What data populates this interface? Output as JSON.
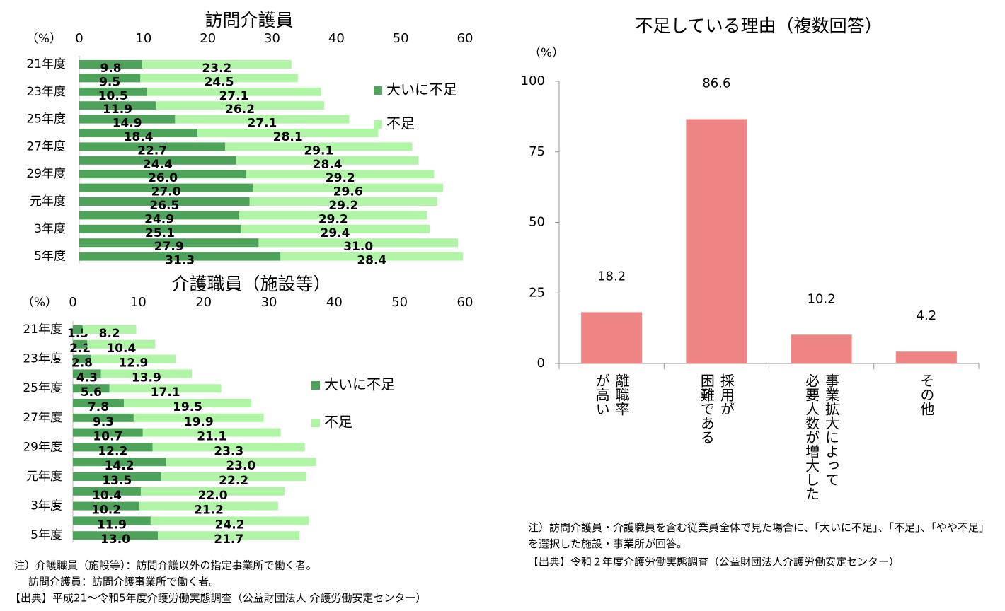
{
  "chart_data": [
    {
      "type": "bar",
      "orientation": "horizontal",
      "stacked": true,
      "title": "訪問介護員",
      "xlabel": "（%）",
      "categories": [
        "21年度",
        null,
        "23年度",
        null,
        "25年度",
        null,
        "27年度",
        null,
        "29年度",
        null,
        "元年度",
        null,
        "3年度",
        null,
        "5年度"
      ],
      "series": [
        {
          "name": "大いに不足",
          "color": "#4ea35a",
          "values": [
            9.8,
            9.5,
            10.5,
            11.9,
            14.9,
            18.4,
            22.7,
            24.4,
            26.0,
            27.0,
            26.5,
            24.9,
            25.1,
            27.9,
            31.3
          ],
          "value_labels": [
            "9.8",
            "9.5",
            "10.5",
            "11.9",
            "14.9",
            "18.4",
            "22.7",
            "24.4",
            "26.0",
            "27.0",
            "26.5",
            "24.9",
            "25.1",
            "27.9",
            "31.3"
          ]
        },
        {
          "name": "不足",
          "color": "#b0f5a6",
          "values": [
            23.2,
            24.5,
            27.1,
            26.2,
            27.1,
            28.1,
            29.1,
            28.4,
            29.2,
            29.6,
            29.2,
            29.2,
            29.4,
            31.0,
            28.4
          ],
          "value_labels": [
            "23.2",
            "24.5",
            "27.1",
            "26.2",
            "27.1",
            "28.1",
            "29.1",
            "28.4",
            "29.2",
            "29.6",
            "29.2",
            "29.2",
            "29.4",
            "31.0",
            "28.4"
          ]
        }
      ],
      "xlim": [
        0,
        60
      ],
      "xticks": [
        0,
        10,
        20,
        30,
        40,
        50,
        60
      ],
      "grid": false
    },
    {
      "type": "bar",
      "orientation": "horizontal",
      "stacked": true,
      "title": "介護職員（施設等）",
      "xlabel": "（%）",
      "categories": [
        "21年度",
        null,
        "23年度",
        null,
        "25年度",
        null,
        "27年度",
        null,
        "29年度",
        null,
        "元年度",
        null,
        "3年度",
        null,
        "5年度"
      ],
      "series": [
        {
          "name": "大いに不足",
          "color": "#4ea35a",
          "values": [
            1.5,
            2.2,
            2.8,
            4.3,
            5.6,
            7.8,
            9.3,
            10.7,
            12.2,
            14.2,
            13.5,
            10.4,
            10.2,
            11.9,
            13.0
          ],
          "value_labels": [
            "1.5",
            "2.2",
            "2.8",
            "4.3",
            "5.6",
            "7.8",
            "9.3",
            "10.7",
            "12.2",
            "14.2",
            "13.5",
            "10.4",
            "10.2",
            "11.9",
            "13.0"
          ]
        },
        {
          "name": "不足",
          "color": "#b0f5a6",
          "values": [
            8.2,
            10.4,
            12.9,
            13.9,
            17.1,
            19.5,
            19.9,
            21.1,
            23.3,
            23.0,
            22.2,
            22.0,
            21.2,
            24.2,
            21.7
          ],
          "value_labels": [
            "8.2",
            "10.4",
            "12.9",
            "13.9",
            "17.1",
            "19.5",
            "19.9",
            "21.1",
            "23.3",
            "23.0",
            "22.2",
            "22.0",
            "21.2",
            "24.2",
            "21.7"
          ]
        }
      ],
      "xlim": [
        0,
        60
      ],
      "xticks": [
        0,
        10,
        20,
        30,
        40,
        50,
        60
      ],
      "grid": false
    },
    {
      "type": "bar",
      "orientation": "vertical",
      "title": "不足している理由（複数回答）",
      "ylabel": "（%）",
      "categories": [
        [
          "離職率",
          "が高い"
        ],
        [
          "採用が",
          "困難である"
        ],
        [
          "事業拡大によって",
          "必要人数が増大した"
        ],
        [
          "その他"
        ]
      ],
      "values": [
        18.2,
        86.6,
        10.2,
        4.2
      ],
      "color": "#ee8584",
      "ylim": [
        0,
        100
      ],
      "yticks": [
        0,
        25,
        50,
        75,
        100
      ],
      "grid": false
    }
  ],
  "notes": {
    "left": [
      "注）介護職員（施設等）：訪問介護以外の指定事業所で働く者。",
      "訪問介護員：訪問介護事業所で働く者。",
      "【出典】平成21～令和5年度介護労働実態調査（公益財団法人 介護労働安定センター）"
    ],
    "right": [
      "注）訪問介護員・介護職員を含む従業員全体で見た場合に、「大いに不足」、「不足」、「やや不足」を選択した施設・事業所が回答。",
      "【出典】令和２年度介護労働実態調査（公益財団法人介護労働安定センター）"
    ]
  }
}
